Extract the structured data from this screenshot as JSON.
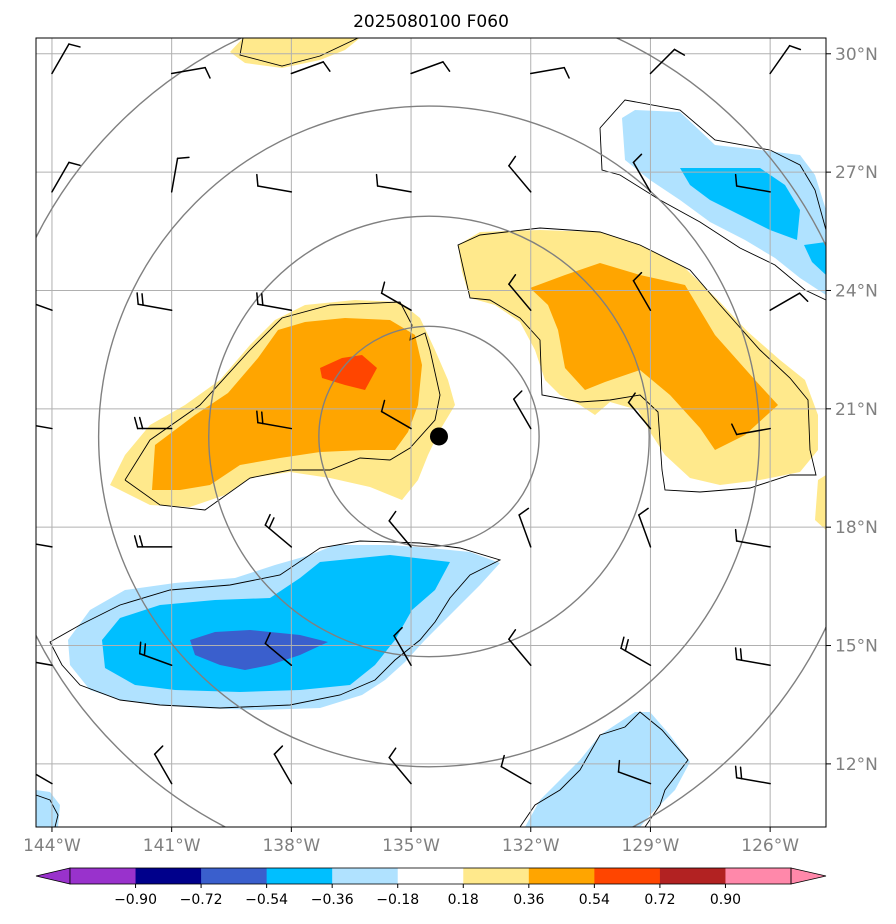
{
  "title": "2025080100 F060",
  "map": {
    "lon_range": [
      -144.4,
      -124.6
    ],
    "lat_range": [
      10.4,
      30.4
    ],
    "lon_ticks": [
      -144,
      -141,
      -138,
      -135,
      -132,
      -129,
      -126
    ],
    "lon_tick_labels": [
      "144°W",
      "141°W",
      "138°W",
      "135°W",
      "132°W",
      "129°W",
      "126°W"
    ],
    "lat_ticks": [
      30,
      27,
      24,
      21,
      18,
      15,
      12
    ],
    "lat_tick_labels": [
      "30°N",
      "27°N",
      "24°N",
      "21°N",
      "18°N",
      "15°N",
      "12°N"
    ],
    "storm_center": {
      "lon": -134.3,
      "lat": 20.3
    },
    "range_rings_deg": [
      3,
      6,
      9,
      12
    ]
  },
  "colorbar": {
    "levels": [
      "−0.90",
      "−0.72",
      "−0.54",
      "−0.36",
      "−0.18",
      "0.18",
      "0.36",
      "0.54",
      "0.72",
      "0.90"
    ],
    "colors": [
      "#9932cc",
      "#00008b",
      "#3a5fcd",
      "#00bfff",
      "#b0e2ff",
      "#ffffff",
      "#ffe98c",
      "#ffa500",
      "#ff4500",
      "#b22222",
      "#ff88aa"
    ]
  },
  "fill_colors": {
    "light_yellow": "#ffe98c",
    "orange": "#ffa500",
    "red_orange": "#ff4500",
    "light_blue": "#b0e2ff",
    "sky_blue": "#00bfff",
    "royal_blue": "#3a5fcd",
    "gridline": "#b0b0b0",
    "ring": "#808080"
  },
  "wind_barbs": {
    "lons": [
      -144,
      -141,
      -138,
      -135,
      -132,
      -129,
      -126
    ],
    "lats": [
      29.5,
      26.5,
      23.5,
      20.5,
      17.5,
      14.5,
      11.5
    ],
    "dir_deg": [
      [
        30,
        80,
        70,
        70,
        80,
        45,
        35
      ],
      [
        30,
        10,
        280,
        280,
        320,
        330,
        280
      ],
      [
        290,
        280,
        280,
        300,
        320,
        330,
        60
      ],
      [
        280,
        270,
        280,
        300,
        330,
        320,
        260
      ],
      [
        280,
        270,
        310,
        320,
        340,
        340,
        280
      ],
      [
        280,
        290,
        310,
        330,
        320,
        300,
        280
      ],
      [
        300,
        330,
        330,
        320,
        300,
        290,
        280
      ]
    ],
    "barbs": [
      [
        1,
        1,
        1,
        1,
        1,
        1,
        1
      ],
      [
        1,
        1,
        1,
        1,
        1,
        1,
        1
      ],
      [
        2,
        2,
        2,
        1,
        1,
        1,
        1
      ],
      [
        2,
        2,
        2,
        1,
        1,
        1,
        1
      ],
      [
        2,
        2,
        2,
        1,
        1,
        1,
        1
      ],
      [
        2,
        2,
        1,
        1,
        1,
        2,
        2
      ],
      [
        1,
        1,
        1,
        1,
        1,
        1,
        2
      ]
    ]
  }
}
